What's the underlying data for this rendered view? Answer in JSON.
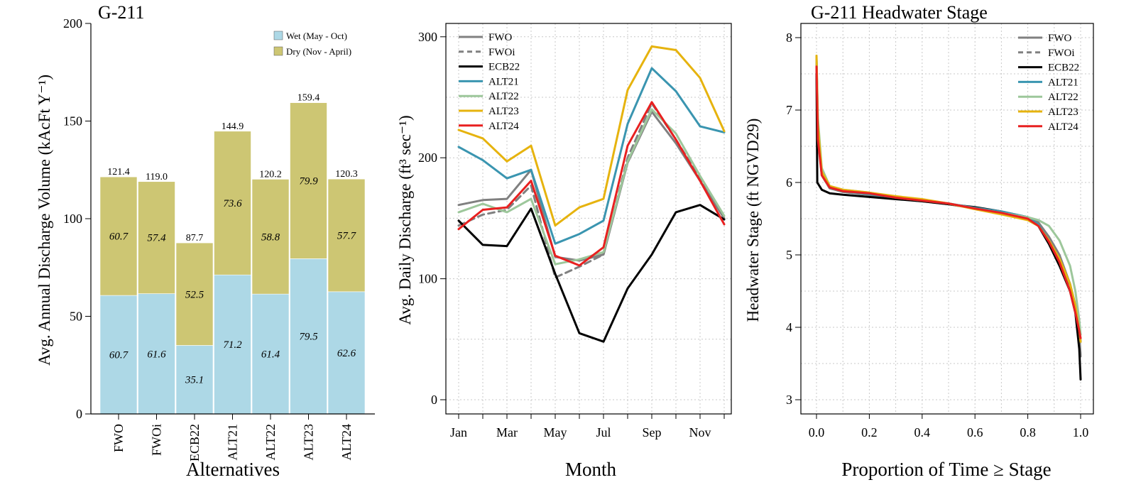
{
  "colors": {
    "wet": "#add8e6",
    "dry": "#cdc673",
    "FWO": "#808080",
    "FWOi": "#808080",
    "ECB22": "#000000",
    "ALT21": "#3a95b0",
    "ALT22": "#9dc79b",
    "ALT23": "#e6b30e",
    "ALT24": "#e82020",
    "grid": "#c8c8c8"
  },
  "chart_data": [
    {
      "type": "bar",
      "title": "G-211",
      "xlabel": "Alternatives",
      "ylabel": "Avg. Annual Discharge Volume (kAcFt Y⁻¹)",
      "ylim": [
        0,
        200
      ],
      "yticks": [
        0,
        50,
        100,
        150,
        200
      ],
      "grid": false,
      "legend_position": "top-right",
      "categories": [
        "FWO",
        "FWOi",
        "ECB22",
        "ALT21",
        "ALT22",
        "ALT23",
        "ALT24"
      ],
      "series": [
        {
          "name": "Wet (May - Oct)",
          "values": [
            60.7,
            61.6,
            35.1,
            71.2,
            61.4,
            79.5,
            62.6
          ]
        },
        {
          "name": "Dry (Nov - April)",
          "values": [
            60.7,
            57.4,
            52.5,
            73.6,
            58.8,
            79.9,
            57.7
          ]
        }
      ],
      "segment_labels_wet": [
        "60.7",
        "61.6",
        "35.1",
        "71.2",
        "61.4",
        "79.5",
        "62.6"
      ],
      "segment_labels_dry": [
        "60.7",
        "57.4",
        "52.5",
        "73.6",
        "58.8",
        "79.9",
        "57.7"
      ],
      "totals": [
        121.4,
        119.0,
        87.7,
        144.9,
        120.2,
        159.4,
        120.3
      ],
      "total_labels": [
        "121.4",
        "119.0",
        "87.7",
        "144.9",
        "120.2",
        "159.4",
        "120.3"
      ]
    },
    {
      "type": "line",
      "title": "",
      "xlabel": "Month",
      "ylabel": "Avg. Daily Discharge (ft³ sec⁻¹)",
      "ylim": [
        -10,
        310
      ],
      "yticks": [
        0,
        100,
        200,
        300
      ],
      "x": [
        1,
        2,
        3,
        4,
        5,
        6,
        7,
        8,
        9,
        10,
        11,
        12
      ],
      "xtick_labels": [
        "Jan",
        "Mar",
        "May",
        "Jul",
        "Sep",
        "Nov"
      ],
      "xticks": [
        1,
        3,
        5,
        7,
        9,
        11
      ],
      "grid": true,
      "legend_position": "top-left",
      "series": [
        {
          "name": "FWO",
          "values": [
            161,
            165,
            166,
            190,
            118,
            115,
            120,
            196,
            238,
            212,
            181,
            150
          ]
        },
        {
          "name": "FWOi",
          "values": [
            144,
            153,
            157,
            177,
            101,
            110,
            120,
            200,
            245,
            215,
            183,
            150
          ]
        },
        {
          "name": "ECB22",
          "values": [
            148,
            128,
            127,
            158,
            104,
            55,
            48,
            92,
            120,
            155,
            161,
            149
          ]
        },
        {
          "name": "ALT21",
          "values": [
            209,
            198,
            183,
            190,
            129,
            137,
            148,
            228,
            274,
            255,
            226,
            221
          ]
        },
        {
          "name": "ALT22",
          "values": [
            155,
            162,
            155,
            166,
            112,
            116,
            122,
            197,
            240,
            220,
            185,
            152
          ]
        },
        {
          "name": "ALT23",
          "values": [
            223,
            216,
            197,
            210,
            144,
            159,
            166,
            256,
            292,
            289,
            266,
            222
          ]
        },
        {
          "name": "ALT24",
          "values": [
            141,
            157,
            159,
            181,
            119,
            111,
            126,
            210,
            246,
            215,
            181,
            145
          ]
        }
      ]
    },
    {
      "type": "line",
      "title": "G-211 Headwater Stage",
      "xlabel": "Proportion of Time ≥ Stage",
      "ylabel": "Headwater Stage (ft NGVD29)",
      "xlim": [
        -0.03,
        1.03
      ],
      "ylim": [
        2.9,
        8.2
      ],
      "xticks": [
        0.0,
        0.2,
        0.4,
        0.6,
        0.8,
        1.0
      ],
      "xtick_labels": [
        "0.0",
        "0.2",
        "0.4",
        "0.6",
        "0.8",
        "1.0"
      ],
      "yticks": [
        3,
        4,
        5,
        6,
        7,
        8
      ],
      "grid": true,
      "legend_position": "top-right",
      "series": [
        {
          "name": "FWO",
          "points": [
            [
              0,
              7.7
            ],
            [
              0.005,
              6.7
            ],
            [
              0.02,
              6.1
            ],
            [
              0.05,
              5.92
            ],
            [
              0.1,
              5.87
            ],
            [
              0.2,
              5.83
            ],
            [
              0.3,
              5.78
            ],
            [
              0.4,
              5.74
            ],
            [
              0.5,
              5.7
            ],
            [
              0.6,
              5.64
            ],
            [
              0.7,
              5.59
            ],
            [
              0.8,
              5.52
            ],
            [
              0.84,
              5.45
            ],
            [
              0.88,
              5.25
            ],
            [
              0.92,
              5.0
            ],
            [
              0.96,
              4.6
            ],
            [
              0.98,
              4.3
            ],
            [
              0.995,
              3.9
            ],
            [
              1.0,
              3.6
            ]
          ]
        },
        {
          "name": "FWOi",
          "points": [
            [
              0,
              7.7
            ],
            [
              0.005,
              6.7
            ],
            [
              0.02,
              6.1
            ],
            [
              0.05,
              5.92
            ],
            [
              0.1,
              5.87
            ],
            [
              0.2,
              5.83
            ],
            [
              0.3,
              5.78
            ],
            [
              0.4,
              5.74
            ],
            [
              0.5,
              5.7
            ],
            [
              0.6,
              5.64
            ],
            [
              0.7,
              5.59
            ],
            [
              0.8,
              5.52
            ],
            [
              0.84,
              5.42
            ],
            [
              0.88,
              5.2
            ],
            [
              0.92,
              4.9
            ],
            [
              0.96,
              4.55
            ],
            [
              0.98,
              4.25
            ],
            [
              0.995,
              3.9
            ],
            [
              1.0,
              3.6
            ]
          ]
        },
        {
          "name": "ECB22",
          "points": [
            [
              0,
              7.5
            ],
            [
              0.003,
              6.0
            ],
            [
              0.02,
              5.9
            ],
            [
              0.05,
              5.85
            ],
            [
              0.1,
              5.83
            ],
            [
              0.2,
              5.8
            ],
            [
              0.3,
              5.77
            ],
            [
              0.4,
              5.74
            ],
            [
              0.5,
              5.7
            ],
            [
              0.6,
              5.66
            ],
            [
              0.7,
              5.6
            ],
            [
              0.8,
              5.52
            ],
            [
              0.84,
              5.4
            ],
            [
              0.88,
              5.15
            ],
            [
              0.92,
              4.85
            ],
            [
              0.96,
              4.5
            ],
            [
              0.98,
              4.2
            ],
            [
              0.995,
              3.7
            ],
            [
              1.0,
              3.28
            ]
          ]
        },
        {
          "name": "ALT21",
          "points": [
            [
              0,
              7.7
            ],
            [
              0.005,
              6.8
            ],
            [
              0.02,
              6.15
            ],
            [
              0.05,
              5.95
            ],
            [
              0.1,
              5.88
            ],
            [
              0.2,
              5.84
            ],
            [
              0.3,
              5.79
            ],
            [
              0.4,
              5.75
            ],
            [
              0.5,
              5.71
            ],
            [
              0.6,
              5.65
            ],
            [
              0.7,
              5.6
            ],
            [
              0.8,
              5.52
            ],
            [
              0.84,
              5.42
            ],
            [
              0.88,
              5.2
            ],
            [
              0.92,
              4.95
            ],
            [
              0.96,
              4.6
            ],
            [
              0.98,
              4.3
            ],
            [
              0.995,
              4.0
            ],
            [
              1.0,
              3.8
            ]
          ]
        },
        {
          "name": "ALT22",
          "points": [
            [
              0,
              7.75
            ],
            [
              0.005,
              6.9
            ],
            [
              0.02,
              6.2
            ],
            [
              0.05,
              5.95
            ],
            [
              0.1,
              5.9
            ],
            [
              0.2,
              5.86
            ],
            [
              0.3,
              5.8
            ],
            [
              0.4,
              5.76
            ],
            [
              0.5,
              5.71
            ],
            [
              0.6,
              5.64
            ],
            [
              0.7,
              5.58
            ],
            [
              0.8,
              5.52
            ],
            [
              0.84,
              5.48
            ],
            [
              0.88,
              5.4
            ],
            [
              0.92,
              5.2
            ],
            [
              0.96,
              4.85
            ],
            [
              0.98,
              4.5
            ],
            [
              0.995,
              4.1
            ],
            [
              1.0,
              3.9
            ]
          ]
        },
        {
          "name": "ALT23",
          "points": [
            [
              0,
              7.75
            ],
            [
              0.005,
              6.8
            ],
            [
              0.02,
              6.15
            ],
            [
              0.05,
              5.95
            ],
            [
              0.1,
              5.9
            ],
            [
              0.2,
              5.86
            ],
            [
              0.3,
              5.81
            ],
            [
              0.4,
              5.77
            ],
            [
              0.5,
              5.71
            ],
            [
              0.6,
              5.63
            ],
            [
              0.7,
              5.56
            ],
            [
              0.8,
              5.48
            ],
            [
              0.84,
              5.4
            ],
            [
              0.88,
              5.2
            ],
            [
              0.92,
              4.95
            ],
            [
              0.96,
              4.6
            ],
            [
              0.98,
              4.3
            ],
            [
              0.995,
              3.95
            ],
            [
              1.0,
              3.8
            ]
          ]
        },
        {
          "name": "ALT24",
          "points": [
            [
              0,
              7.6
            ],
            [
              0.005,
              6.6
            ],
            [
              0.02,
              6.1
            ],
            [
              0.05,
              5.93
            ],
            [
              0.1,
              5.88
            ],
            [
              0.2,
              5.85
            ],
            [
              0.3,
              5.79
            ],
            [
              0.4,
              5.75
            ],
            [
              0.5,
              5.71
            ],
            [
              0.6,
              5.64
            ],
            [
              0.7,
              5.58
            ],
            [
              0.8,
              5.5
            ],
            [
              0.84,
              5.4
            ],
            [
              0.88,
              5.18
            ],
            [
              0.92,
              4.9
            ],
            [
              0.96,
              4.5
            ],
            [
              0.98,
              4.2
            ],
            [
              0.995,
              3.95
            ],
            [
              1.0,
              3.85
            ]
          ]
        }
      ]
    }
  ]
}
